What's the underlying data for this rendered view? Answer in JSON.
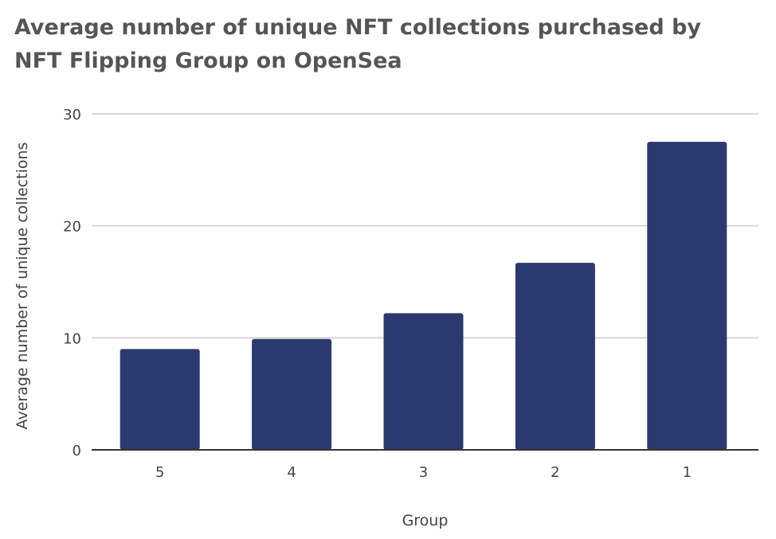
{
  "chart_data": {
    "type": "bar",
    "title": "Average number of unique NFT collections purchased by NFT Flipping Group on OpenSea",
    "xlabel": "Group",
    "ylabel": "Average number of unique collections",
    "categories": [
      "5",
      "4",
      "3",
      "2",
      "1"
    ],
    "values": [
      9.0,
      9.9,
      12.2,
      16.7,
      27.5
    ],
    "ylim": [
      0,
      30
    ],
    "yticks": [
      0,
      10,
      20,
      30
    ],
    "grid": true,
    "legend": "none",
    "colors": {
      "bar": "#2b3a6e",
      "grid": "#cccccc",
      "axis": "#333333"
    }
  }
}
